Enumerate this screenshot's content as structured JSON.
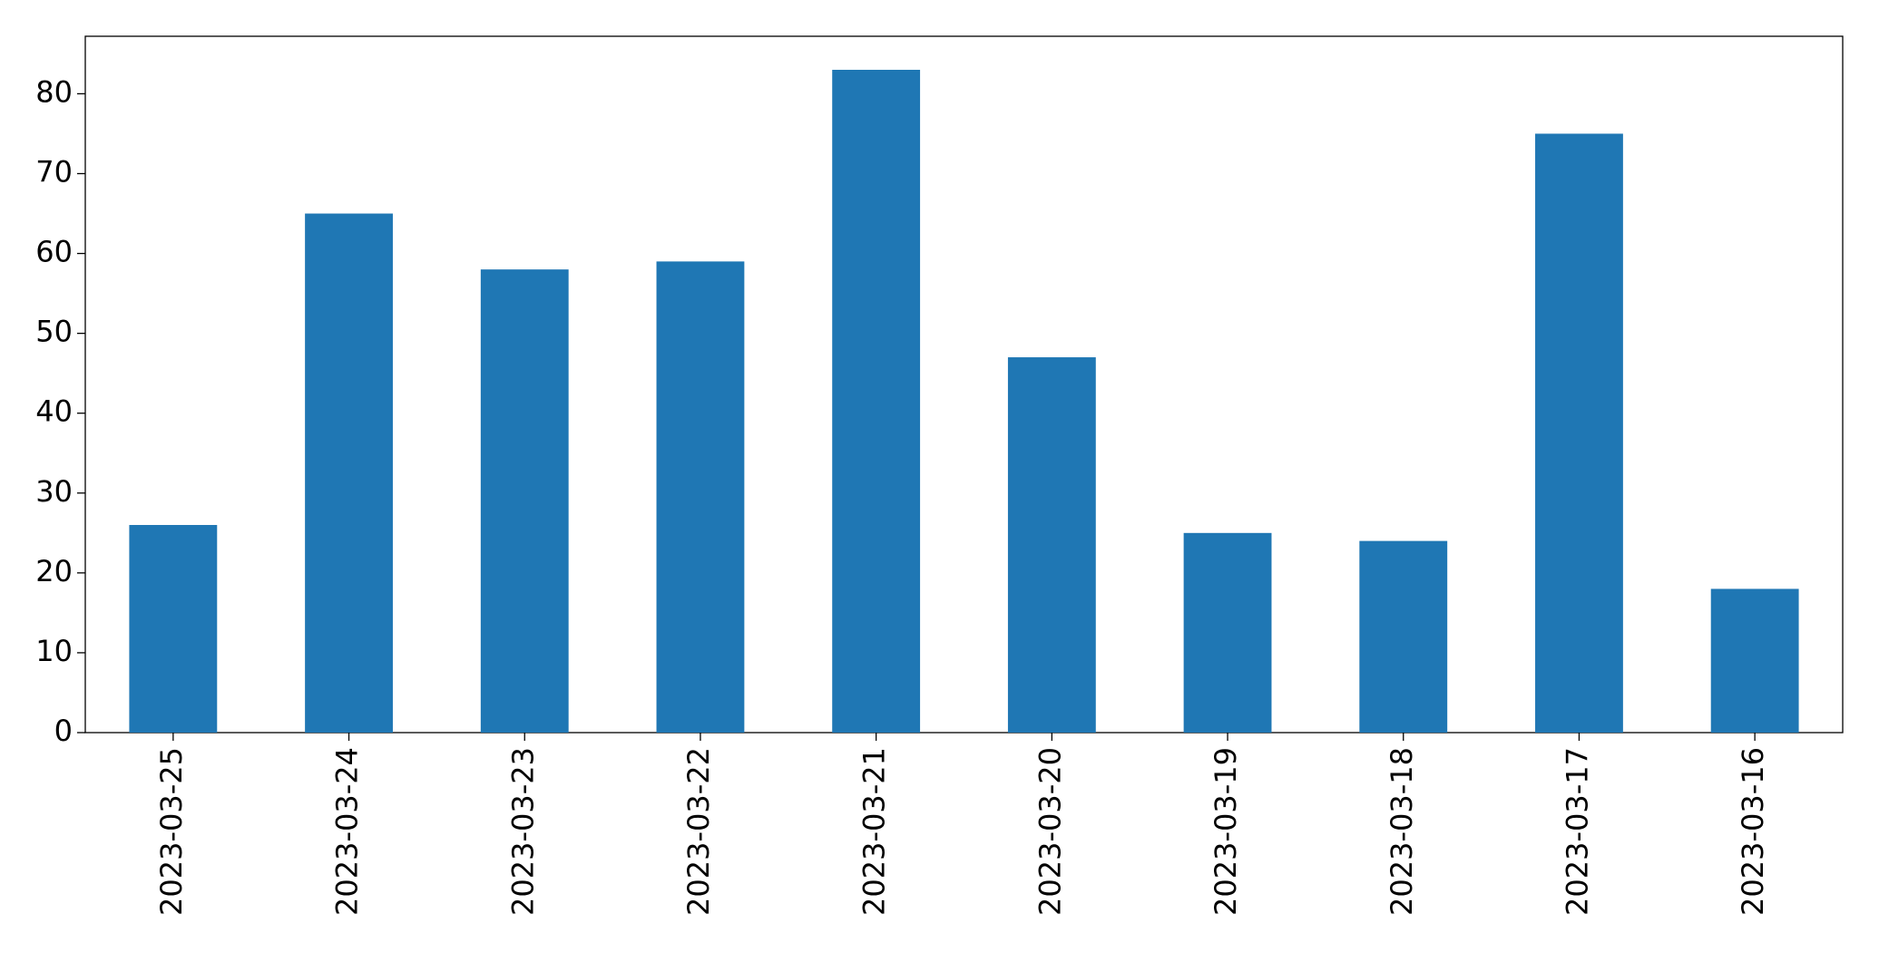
{
  "chart_data": {
    "type": "bar",
    "categories": [
      "2023-03-25",
      "2023-03-24",
      "2023-03-23",
      "2023-03-22",
      "2023-03-21",
      "2023-03-20",
      "2023-03-19",
      "2023-03-18",
      "2023-03-17",
      "2023-03-16"
    ],
    "values": [
      26,
      65,
      58,
      59,
      83,
      47,
      25,
      24,
      75,
      18
    ],
    "color": "#1f77b4",
    "ylim": [
      0,
      87.2
    ],
    "yticks": [
      0,
      10,
      20,
      30,
      40,
      50,
      60,
      70,
      80
    ],
    "grid": false
  }
}
